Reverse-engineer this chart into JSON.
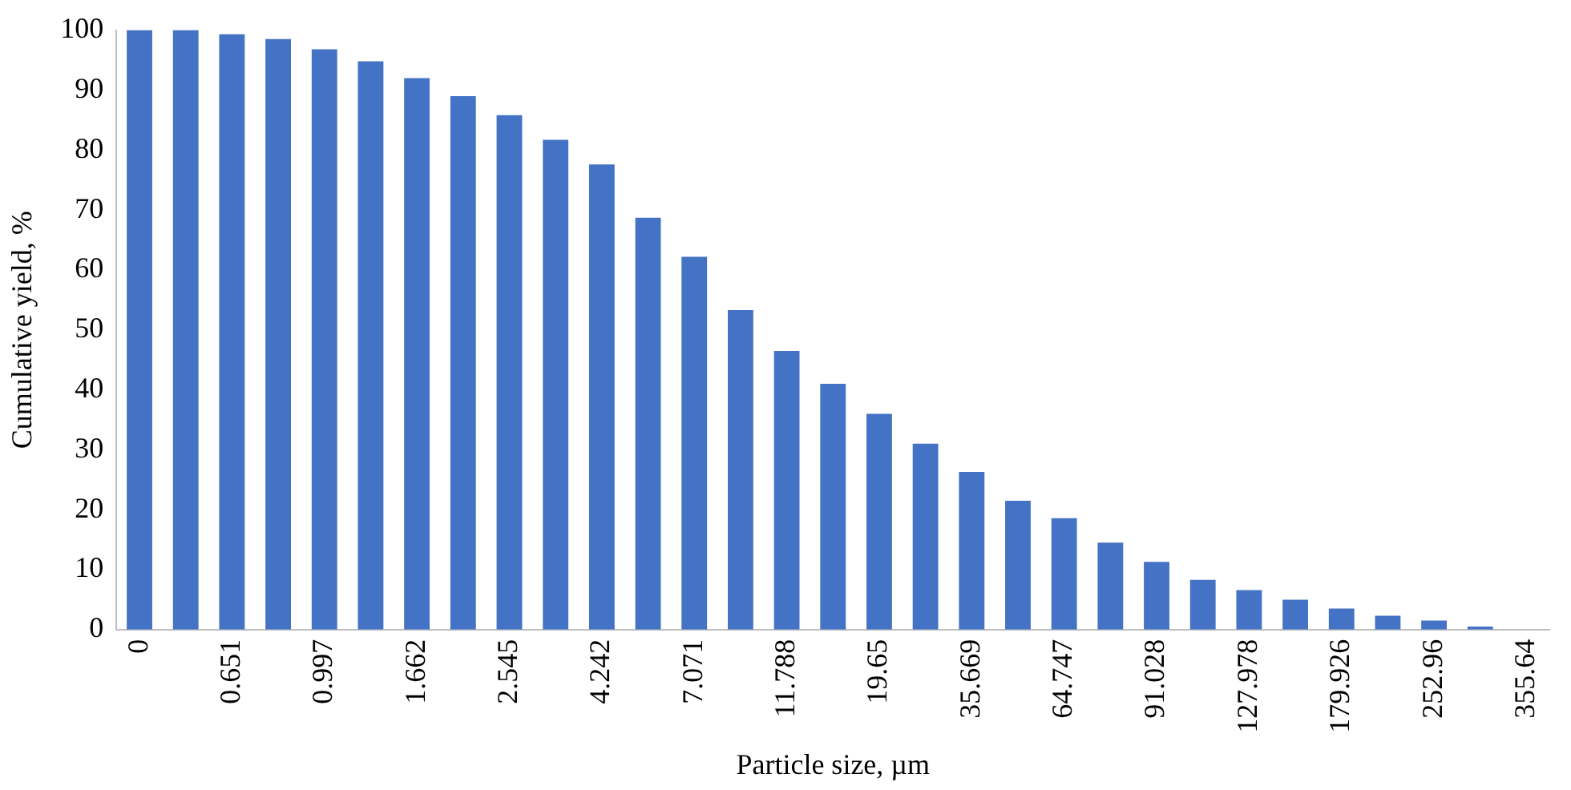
{
  "chart_data": {
    "type": "bar",
    "xlabel": "Particle size, µm",
    "ylabel": "Cumulative yield, %",
    "categories": [
      "0",
      null,
      "0.651",
      null,
      "0.997",
      null,
      "1.662",
      null,
      "2.545",
      null,
      "4.242",
      null,
      "7.071",
      null,
      "11.788",
      null,
      "19.65",
      null,
      "35.669",
      null,
      "64.747",
      null,
      "91.028",
      null,
      "127.978",
      null,
      "179.926",
      null,
      "252.96",
      null,
      "355.64"
    ],
    "values": [
      100,
      100,
      99.3,
      98.5,
      96.8,
      94.8,
      92,
      89,
      85.8,
      81.7,
      77.6,
      68.7,
      62.2,
      53.3,
      46.5,
      41,
      36,
      31,
      26.3,
      21.5,
      18.6,
      14.5,
      11.3,
      8.3,
      6.6,
      5,
      3.5,
      2.3,
      1.5,
      0.5,
      0
    ],
    "color": "#4472c4",
    "ylim": [
      0,
      100
    ],
    "yticks": [
      0,
      10,
      20,
      30,
      40,
      50,
      60,
      70,
      80,
      90,
      100
    ],
    "grid": false,
    "legend": false
  }
}
